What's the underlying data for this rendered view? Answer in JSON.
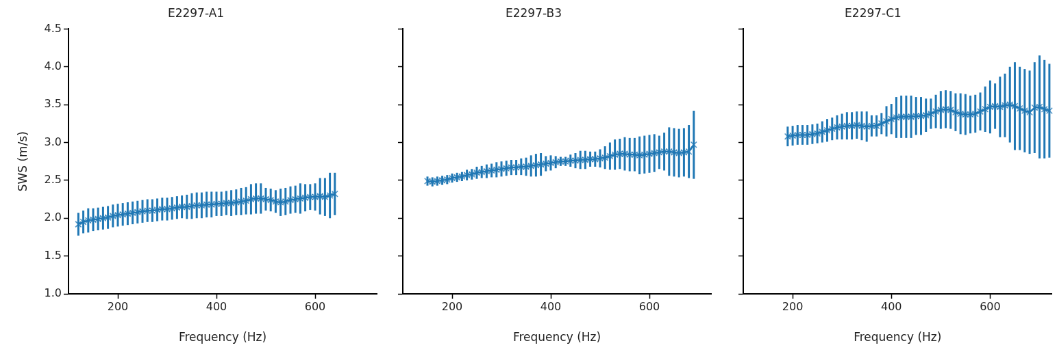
{
  "chart_data": [
    {
      "type": "line",
      "title": "E2297-A1",
      "xlabel": "Frequency (Hz)",
      "ylabel": "SWS (m/s)",
      "color": "#1f77b4",
      "marker": "cross",
      "grid": false,
      "x": [
        120,
        130,
        140,
        150,
        160,
        170,
        180,
        190,
        200,
        210,
        220,
        230,
        240,
        250,
        260,
        270,
        280,
        290,
        300,
        310,
        320,
        330,
        340,
        350,
        360,
        370,
        380,
        390,
        400,
        410,
        420,
        430,
        440,
        450,
        460,
        470,
        480,
        490,
        500,
        510,
        520,
        530,
        540,
        550,
        560,
        570,
        580,
        590,
        600,
        610,
        620,
        630,
        640
      ],
      "values": [
        1.92,
        1.95,
        1.97,
        1.98,
        1.99,
        2.0,
        2.01,
        2.03,
        2.04,
        2.05,
        2.06,
        2.07,
        2.08,
        2.09,
        2.1,
        2.1,
        2.11,
        2.12,
        2.12,
        2.13,
        2.14,
        2.15,
        2.15,
        2.16,
        2.17,
        2.17,
        2.18,
        2.18,
        2.19,
        2.19,
        2.2,
        2.2,
        2.21,
        2.22,
        2.23,
        2.25,
        2.26,
        2.26,
        2.25,
        2.24,
        2.22,
        2.21,
        2.22,
        2.24,
        2.25,
        2.26,
        2.27,
        2.28,
        2.28,
        2.29,
        2.28,
        2.3,
        2.32
      ],
      "errors": [
        0.15,
        0.15,
        0.16,
        0.15,
        0.15,
        0.15,
        0.15,
        0.15,
        0.15,
        0.15,
        0.15,
        0.15,
        0.15,
        0.15,
        0.15,
        0.15,
        0.15,
        0.15,
        0.15,
        0.15,
        0.15,
        0.15,
        0.16,
        0.17,
        0.17,
        0.17,
        0.17,
        0.17,
        0.16,
        0.16,
        0.16,
        0.17,
        0.17,
        0.18,
        0.18,
        0.2,
        0.2,
        0.2,
        0.15,
        0.15,
        0.15,
        0.18,
        0.18,
        0.18,
        0.18,
        0.2,
        0.18,
        0.17,
        0.18,
        0.24,
        0.25,
        0.3,
        0.28
      ],
      "xlim": [
        100,
        725
      ],
      "xticks": [
        200,
        400,
        600
      ],
      "ylim": [
        1,
        4.5
      ],
      "yticks": [
        {
          "value": 1,
          "label": "1.0"
        },
        1.5,
        {
          "value": 2,
          "label": "2.0"
        },
        2.5,
        {
          "value": 3,
          "label": "3.0"
        },
        3.5,
        {
          "value": 4,
          "label": "4.0"
        },
        4.5
      ]
    },
    {
      "type": "line",
      "title": "E2297-B3",
      "xlabel": "Frequency (Hz)",
      "color": "#1f77b4",
      "marker": "cross",
      "grid": false,
      "tick_labels": "x",
      "x": [
        150,
        160,
        170,
        180,
        190,
        200,
        210,
        220,
        230,
        240,
        250,
        260,
        270,
        280,
        290,
        300,
        310,
        320,
        330,
        340,
        350,
        360,
        370,
        380,
        390,
        400,
        410,
        420,
        430,
        440,
        450,
        460,
        470,
        480,
        490,
        500,
        510,
        520,
        530,
        540,
        550,
        560,
        570,
        580,
        590,
        600,
        610,
        620,
        630,
        640,
        650,
        660,
        670,
        680,
        690
      ],
      "values": [
        2.49,
        2.48,
        2.49,
        2.5,
        2.51,
        2.53,
        2.54,
        2.55,
        2.57,
        2.58,
        2.6,
        2.61,
        2.62,
        2.63,
        2.64,
        2.65,
        2.66,
        2.67,
        2.67,
        2.68,
        2.68,
        2.69,
        2.7,
        2.71,
        2.72,
        2.73,
        2.74,
        2.75,
        2.75,
        2.76,
        2.76,
        2.77,
        2.77,
        2.78,
        2.78,
        2.79,
        2.8,
        2.82,
        2.84,
        2.85,
        2.85,
        2.84,
        2.84,
        2.83,
        2.84,
        2.85,
        2.86,
        2.87,
        2.88,
        2.88,
        2.87,
        2.86,
        2.87,
        2.88,
        2.97
      ],
      "errors": [
        0.06,
        0.06,
        0.06,
        0.06,
        0.06,
        0.06,
        0.06,
        0.06,
        0.07,
        0.07,
        0.08,
        0.08,
        0.09,
        0.09,
        0.1,
        0.1,
        0.1,
        0.1,
        0.1,
        0.11,
        0.12,
        0.14,
        0.15,
        0.15,
        0.1,
        0.1,
        0.08,
        0.06,
        0.06,
        0.08,
        0.1,
        0.12,
        0.12,
        0.1,
        0.1,
        0.12,
        0.15,
        0.18,
        0.2,
        0.2,
        0.22,
        0.22,
        0.22,
        0.25,
        0.25,
        0.25,
        0.25,
        0.22,
        0.25,
        0.32,
        0.32,
        0.32,
        0.32,
        0.35,
        0.45
      ],
      "xlim": [
        100,
        725
      ],
      "xticks": [
        200,
        400,
        600
      ],
      "ylim": [
        1,
        4.5
      ],
      "yticks": [
        1,
        1.5,
        2,
        2.5,
        3,
        3.5,
        4,
        4.5
      ]
    },
    {
      "type": "line",
      "title": "E2297-C1",
      "xlabel": "Frequency (Hz)",
      "color": "#1f77b4",
      "marker": "cross",
      "grid": false,
      "tick_labels": "x",
      "x": [
        190,
        200,
        210,
        220,
        230,
        240,
        250,
        260,
        270,
        280,
        290,
        300,
        310,
        320,
        330,
        340,
        350,
        360,
        370,
        380,
        390,
        400,
        410,
        420,
        430,
        440,
        450,
        460,
        470,
        480,
        490,
        500,
        510,
        520,
        530,
        540,
        550,
        560,
        570,
        580,
        590,
        600,
        610,
        620,
        630,
        640,
        650,
        660,
        670,
        680,
        690,
        700,
        710,
        720
      ],
      "values": [
        3.08,
        3.09,
        3.1,
        3.1,
        3.1,
        3.11,
        3.12,
        3.14,
        3.16,
        3.18,
        3.2,
        3.21,
        3.22,
        3.22,
        3.23,
        3.22,
        3.21,
        3.22,
        3.22,
        3.25,
        3.28,
        3.31,
        3.33,
        3.34,
        3.34,
        3.34,
        3.35,
        3.35,
        3.36,
        3.38,
        3.41,
        3.43,
        3.44,
        3.43,
        3.4,
        3.38,
        3.37,
        3.37,
        3.38,
        3.41,
        3.44,
        3.47,
        3.48,
        3.47,
        3.49,
        3.5,
        3.48,
        3.45,
        3.42,
        3.4,
        3.46,
        3.47,
        3.44,
        3.42
      ],
      "errors": [
        0.13,
        0.13,
        0.13,
        0.13,
        0.13,
        0.13,
        0.13,
        0.14,
        0.15,
        0.15,
        0.16,
        0.17,
        0.18,
        0.18,
        0.18,
        0.19,
        0.2,
        0.14,
        0.14,
        0.14,
        0.2,
        0.2,
        0.27,
        0.28,
        0.28,
        0.28,
        0.25,
        0.25,
        0.22,
        0.2,
        0.22,
        0.25,
        0.25,
        0.25,
        0.25,
        0.27,
        0.27,
        0.25,
        0.25,
        0.25,
        0.3,
        0.35,
        0.3,
        0.4,
        0.42,
        0.5,
        0.58,
        0.55,
        0.55,
        0.55,
        0.6,
        0.68,
        0.65,
        0.62
      ],
      "xlim": [
        100,
        725
      ],
      "xticks": [
        200,
        400,
        600
      ],
      "ylim": [
        1,
        4.5
      ],
      "yticks": [
        1,
        1.5,
        2,
        2.5,
        3,
        3.5,
        4,
        4.5
      ]
    }
  ]
}
